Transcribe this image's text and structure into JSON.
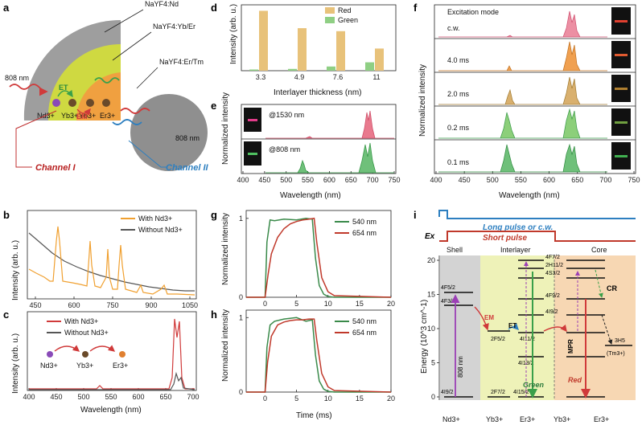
{
  "panels": {
    "a": {
      "label": "a",
      "shell_labels": [
        "NaYF4:Nd",
        "NaYF4:Yb/Er",
        "NaYF4:Er/Tm"
      ],
      "ions": [
        "Nd3+",
        "Yb3+",
        "Yb3+",
        "Er3+"
      ],
      "wavelengths": [
        "808 nm",
        "808 nm"
      ],
      "arrows": [
        "ET",
        "EM"
      ],
      "channels": [
        "Channel I",
        "Channel II"
      ]
    },
    "b": {
      "label": "b",
      "ylabel": "Intensity (arb. u.)",
      "xticks": [
        "450",
        "600",
        "750",
        "900",
        "1050"
      ],
      "legend": [
        "With Nd3+",
        "Without Nd3+"
      ]
    },
    "c": {
      "label": "c",
      "ylabel": "Intensity (arb. u.)",
      "xlabel": "Wavelength (nm)",
      "xticks": [
        "400",
        "450",
        "500",
        "550",
        "600",
        "650",
        "700"
      ],
      "legend": [
        "With Nd3+",
        "Without Nd3+"
      ],
      "ions": [
        "Nd3+",
        "Yb3+",
        "Er3+"
      ]
    },
    "d": {
      "label": "d",
      "ylabel": "Intensity (arb. u.)",
      "xlabel": "Interlayer thickness (nm)",
      "legend": [
        "Red",
        "Green"
      ]
    },
    "e": {
      "label": "e",
      "ylabel": "Normalized intensity",
      "xlabel": "Wavelength (nm)",
      "xticks": [
        "400",
        "450",
        "500",
        "550",
        "600",
        "650",
        "700",
        "750"
      ],
      "traces": [
        "@1530 nm",
        "@808 nm"
      ]
    },
    "f": {
      "label": "f",
      "ylabel": "Normalized intensity",
      "xlabel": "Wavelength (nm)",
      "xticks": [
        "400",
        "450",
        "500",
        "550",
        "600",
        "650",
        "700",
        "750"
      ],
      "title": "Excitation mode",
      "traces": [
        "c.w.",
        "4.0 ms",
        "2.0 ms",
        "0.2 ms",
        "0.1 ms"
      ]
    },
    "g": {
      "label": "g",
      "ylabel": "Normalized intensity",
      "yticks": [
        "0",
        "1"
      ],
      "xticks": [
        "0",
        "5",
        "10",
        "15",
        "20"
      ],
      "legend": [
        "540 nm",
        "654 nm"
      ]
    },
    "h": {
      "label": "h",
      "ylabel": "Normalized intensity",
      "xlabel": "Time (ms)",
      "yticks": [
        "0",
        "1"
      ],
      "xticks": [
        "0",
        "5",
        "10",
        "15",
        "20"
      ],
      "legend": [
        "540 nm",
        "654 nm"
      ]
    },
    "i": {
      "label": "i",
      "pulse_labels": [
        "Long pulse or c.w.",
        "Short pulse"
      ],
      "ex_label": "Ex",
      "regions": [
        "Shell",
        "Interlayer",
        "Core"
      ],
      "ylabel": "Energy (10^3 cm^-1)",
      "yticks": [
        "0",
        "5",
        "10",
        "15",
        "20"
      ],
      "bottom_ions": [
        "Nd3+",
        "Yb3+",
        "Er3+",
        "Yb3+",
        "Er3+"
      ],
      "levels": [
        "4F7/2",
        "2H11/2",
        "4S3/2",
        "4F9/2",
        "4I9/2",
        "4I11/2",
        "4I13/2",
        "4F5/2",
        "4F3/2",
        "2F5/2",
        "2F7/2",
        "4I15/2",
        "4I9/2",
        "3H5",
        "(Tm3+)"
      ],
      "tags": [
        "EM",
        "ET",
        "CR",
        "MPR",
        "Green",
        "Red",
        "808 nm"
      ]
    }
  },
  "chart_data": [
    {
      "panel": "d",
      "type": "bar",
      "categories": [
        "3.3",
        "4.9",
        "7.6",
        "11"
      ],
      "series": [
        {
          "name": "Red",
          "values": [
            100,
            71,
            66,
            37
          ]
        },
        {
          "name": "Green",
          "values": [
            2,
            3,
            7,
            14
          ]
        }
      ],
      "xlabel": "Interlayer thickness (nm)",
      "ylabel": "Intensity (arb. u.)",
      "colors": {
        "Red": "#e8c27a",
        "Green": "#8fcf84"
      }
    },
    {
      "panel": "g",
      "type": "line",
      "xlabel": "Time (ms)",
      "ylabel": "Normalized intensity",
      "xlim": [
        -3,
        20
      ],
      "ylim": [
        0,
        1.1
      ],
      "series": [
        {
          "name": "540 nm",
          "x": [
            -3,
            0,
            0.3,
            0.8,
            1.5,
            3,
            5,
            6.5,
            7.5,
            8,
            8.6,
            9.3,
            10,
            11,
            20
          ],
          "y": [
            0,
            0,
            0.7,
            0.98,
            0.97,
            0.99,
            0.98,
            1.0,
            0.99,
            0.5,
            0.15,
            0.04,
            0.01,
            0,
            0
          ]
        },
        {
          "name": "654 nm",
          "x": [
            -3,
            0,
            0.5,
            1,
            2,
            3,
            4,
            5,
            6,
            7,
            7.8,
            8.2,
            9,
            10,
            11,
            20
          ],
          "y": [
            0,
            0,
            0.3,
            0.55,
            0.76,
            0.87,
            0.93,
            0.96,
            0.98,
            0.99,
            1.0,
            0.7,
            0.25,
            0.07,
            0.02,
            0
          ]
        }
      ]
    },
    {
      "panel": "h",
      "type": "line",
      "xlabel": "Time (ms)",
      "ylabel": "Normalized intensity",
      "xlim": [
        -3,
        20
      ],
      "ylim": [
        0,
        1.1
      ],
      "series": [
        {
          "name": "540 nm",
          "x": [
            -3,
            0,
            0.3,
            0.8,
            1.5,
            3,
            5,
            6.5,
            7.5,
            8,
            8.6,
            9.3,
            10,
            11,
            20
          ],
          "y": [
            0,
            0,
            0.6,
            0.9,
            0.95,
            0.98,
            1.0,
            0.95,
            0.97,
            0.5,
            0.15,
            0.04,
            0.01,
            0,
            0
          ]
        },
        {
          "name": "654 nm",
          "x": [
            -3,
            0,
            0.4,
            1,
            2,
            3,
            4,
            5,
            6,
            7,
            7.8,
            8.2,
            9,
            10,
            11,
            20
          ],
          "y": [
            0,
            0,
            0.4,
            0.75,
            0.9,
            0.94,
            0.96,
            0.97,
            0.97,
            0.98,
            0.98,
            0.7,
            0.25,
            0.07,
            0.02,
            0
          ]
        }
      ]
    }
  ]
}
